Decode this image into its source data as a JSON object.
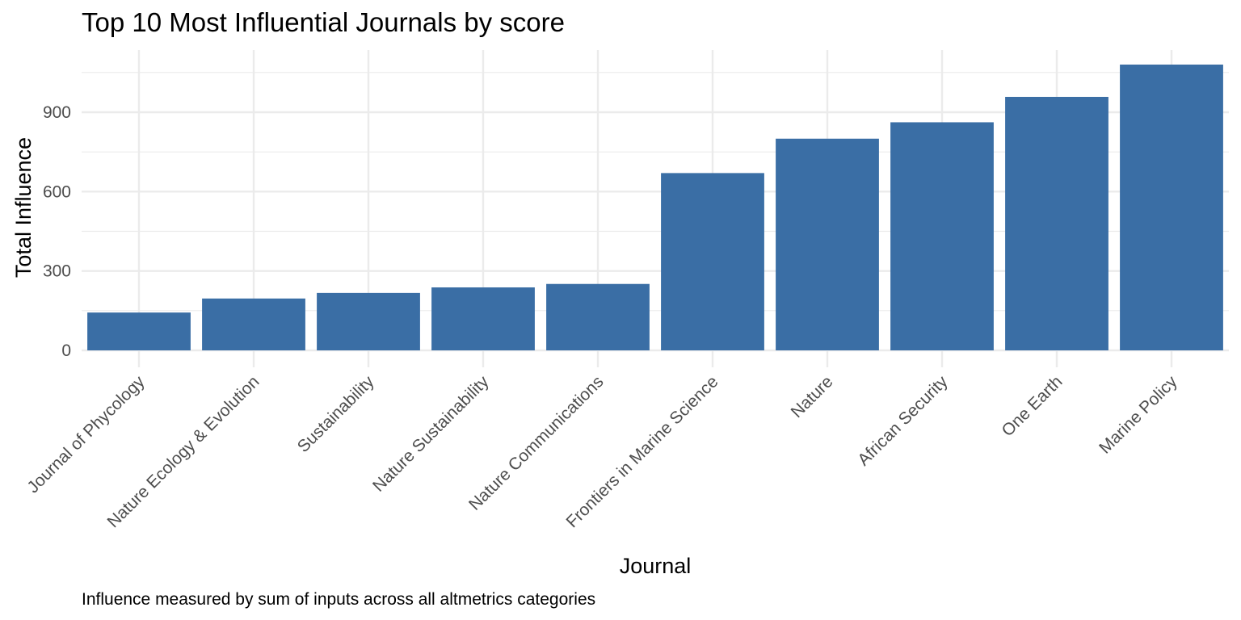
{
  "chart_data": {
    "type": "bar",
    "title": "Top 10 Most Influential Journals by score",
    "xlabel": "Journal",
    "ylabel": "Total Influence",
    "caption": "Influence measured by sum of inputs across all altmetrics categories",
    "categories": [
      "Journal of Phycology",
      "Nature Ecology & Evolution",
      "Sustainability",
      "Nature Sustainability",
      "Nature Communications",
      "Frontiers in Marine Science",
      "Nature",
      "African Security",
      "One Earth",
      "Marine Policy"
    ],
    "values": [
      143,
      196,
      217,
      238,
      251,
      670,
      800,
      862,
      958,
      1080
    ],
    "ylim": [
      0,
      1130
    ],
    "yticks": [
      0,
      300,
      600,
      900
    ],
    "grid": true,
    "bar_color": "#3A6EA5",
    "grid_color": "#EBEBEB"
  }
}
